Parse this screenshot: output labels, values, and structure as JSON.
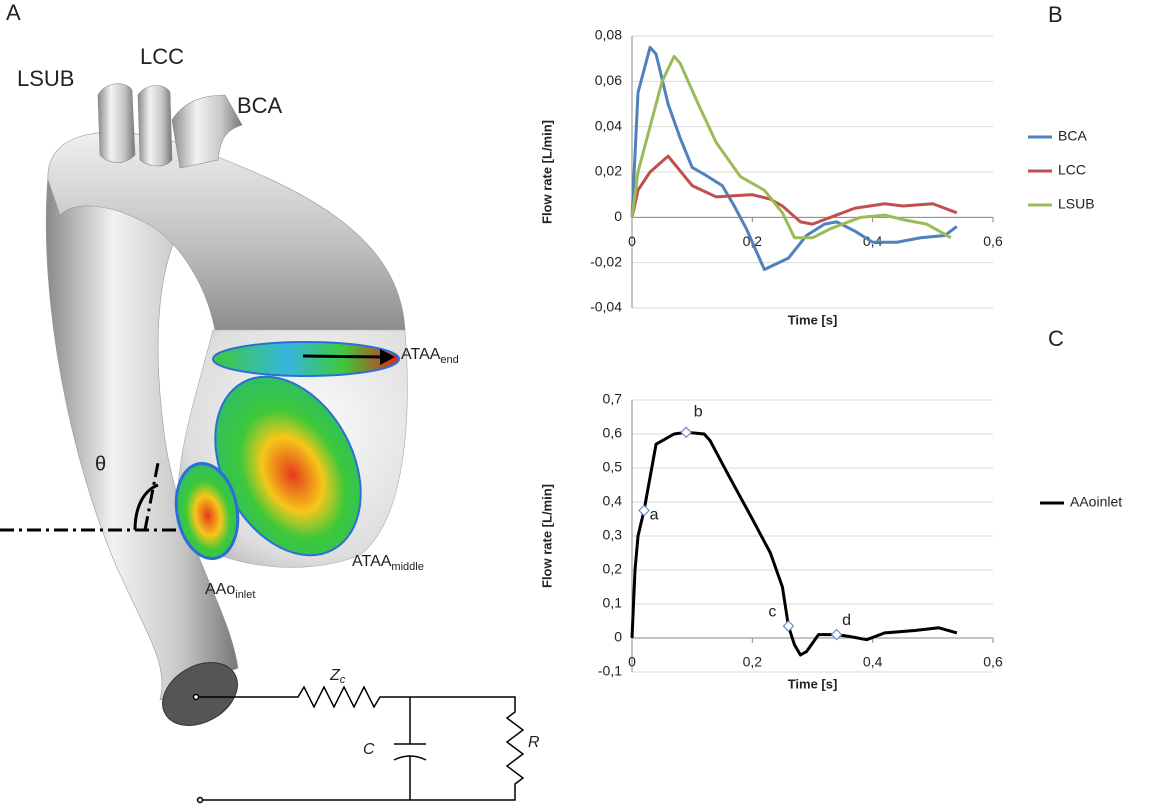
{
  "illustration": {
    "panel_label": "A",
    "labels": [
      {
        "text": "LSUB"
      },
      {
        "text": "LCC"
      },
      {
        "text": "BCA"
      },
      {
        "text": "ATAA",
        "sub": "end"
      },
      {
        "text": "ATAA",
        "sub": "middle"
      },
      {
        "text": "AAo",
        "sub": "inlet"
      },
      {
        "text": "θ"
      },
      {
        "text": "Z",
        "sub": "c"
      },
      {
        "text": "C"
      },
      {
        "text": "R"
      }
    ]
  },
  "chart_data": [
    {
      "type": "line",
      "panel_label": "B",
      "xlabel": "Time [s]",
      "ylabel": "Flow  rate [L/min]",
      "xlim": [
        0,
        0.6
      ],
      "xticks": [
        0,
        {
          "value": 0.2,
          "label": "0,2"
        },
        {
          "value": 0.4,
          "label": "0,4"
        },
        {
          "value": 0.6,
          "label": "0,6"
        }
      ],
      "ylim": [
        -0.04,
        0.08
      ],
      "yticks": [
        {
          "value": -0.04,
          "label": "-0,04"
        },
        {
          "value": -0.02,
          "label": "-0,02"
        },
        0,
        {
          "value": 0.02,
          "label": "0,02"
        },
        {
          "value": 0.04,
          "label": "0,04"
        },
        {
          "value": 0.06,
          "label": "0,06"
        },
        {
          "value": 0.08,
          "label": "0,08"
        }
      ],
      "grid": true,
      "legend": "right",
      "series": [
        {
          "name": "BCA",
          "color": "#4f81bd",
          "x": [
            0,
            0.01,
            0.02,
            0.03,
            0.04,
            0.06,
            0.08,
            0.1,
            0.12,
            0.15,
            0.17,
            0.19,
            0.22,
            0.26,
            0.29,
            0.32,
            0.34,
            0.37,
            0.4,
            0.44,
            0.48,
            0.52,
            0.54
          ],
          "values": [
            0,
            0.055,
            0.065,
            0.075,
            0.072,
            0.05,
            0.035,
            0.022,
            0.019,
            0.014,
            0.005,
            -0.005,
            -0.023,
            -0.018,
            -0.008,
            -0.003,
            -0.002,
            -0.006,
            -0.011,
            -0.011,
            -0.009,
            -0.008,
            -0.004
          ]
        },
        {
          "name": "LCC",
          "color": "#c0504d",
          "x": [
            0,
            0.01,
            0.03,
            0.06,
            0.1,
            0.14,
            0.2,
            0.23,
            0.25,
            0.28,
            0.3,
            0.33,
            0.37,
            0.42,
            0.45,
            0.5,
            0.54
          ],
          "values": [
            0,
            0.012,
            0.02,
            0.027,
            0.014,
            0.009,
            0.01,
            0.008,
            0.005,
            -0.002,
            -0.003,
            0,
            0.004,
            0.006,
            0.005,
            0.006,
            0.002
          ]
        },
        {
          "name": "LSUB",
          "color": "#9bbb59",
          "x": [
            0,
            0.01,
            0.03,
            0.05,
            0.07,
            0.08,
            0.11,
            0.14,
            0.18,
            0.22,
            0.25,
            0.27,
            0.3,
            0.33,
            0.38,
            0.42,
            0.45,
            0.49,
            0.53
          ],
          "values": [
            0,
            0.02,
            0.04,
            0.06,
            0.071,
            0.068,
            0.05,
            0.033,
            0.018,
            0.012,
            0.002,
            -0.009,
            -0.009,
            -0.005,
            0,
            0.001,
            -0.001,
            -0.003,
            -0.009
          ]
        }
      ]
    },
    {
      "type": "line",
      "panel_label": "C",
      "xlabel": "Time [s]",
      "ylabel": "Flow  rate [L/min]",
      "xlim": [
        0,
        0.6
      ],
      "xticks": [
        0,
        {
          "value": 0.2,
          "label": "0,2"
        },
        {
          "value": 0.4,
          "label": "0,4"
        },
        {
          "value": 0.6,
          "label": "0,6"
        }
      ],
      "ylim": [
        -0.1,
        0.7
      ],
      "yticks": [
        {
          "value": -0.1,
          "label": "-0,1"
        },
        0,
        {
          "value": 0.1,
          "label": "0,1"
        },
        {
          "value": 0.2,
          "label": "0,2"
        },
        {
          "value": 0.3,
          "label": "0,3"
        },
        {
          "value": 0.4,
          "label": "0,4"
        },
        {
          "value": 0.5,
          "label": "0,5"
        },
        {
          "value": 0.6,
          "label": "0,6"
        },
        {
          "value": 0.7,
          "label": "0,7"
        }
      ],
      "grid": true,
      "legend": "right",
      "series": [
        {
          "name": "AAoinlet",
          "color": "#000000",
          "x": [
            0,
            0.005,
            0.01,
            0.02,
            0.04,
            0.05,
            0.07,
            0.09,
            0.12,
            0.13,
            0.16,
            0.2,
            0.23,
            0.25,
            0.26,
            0.27,
            0.28,
            0.29,
            0.31,
            0.33,
            0.34,
            0.36,
            0.39,
            0.42,
            0.47,
            0.51,
            0.54
          ],
          "values": [
            0,
            0.2,
            0.3,
            0.375,
            0.57,
            0.58,
            0.6,
            0.605,
            0.6,
            0.58,
            0.48,
            0.35,
            0.25,
            0.15,
            0.035,
            -0.02,
            -0.05,
            -0.04,
            0.01,
            0.01,
            0.01,
            0.005,
            -0.005,
            0.015,
            0.022,
            0.03,
            0.015
          ]
        }
      ],
      "markers": [
        {
          "label": "a",
          "x": 0.02,
          "y": 0.375
        },
        {
          "label": "b",
          "x": 0.09,
          "y": 0.605
        },
        {
          "label": "c",
          "x": 0.26,
          "y": 0.035
        },
        {
          "label": "d",
          "x": 0.34,
          "y": 0.01
        }
      ]
    }
  ]
}
